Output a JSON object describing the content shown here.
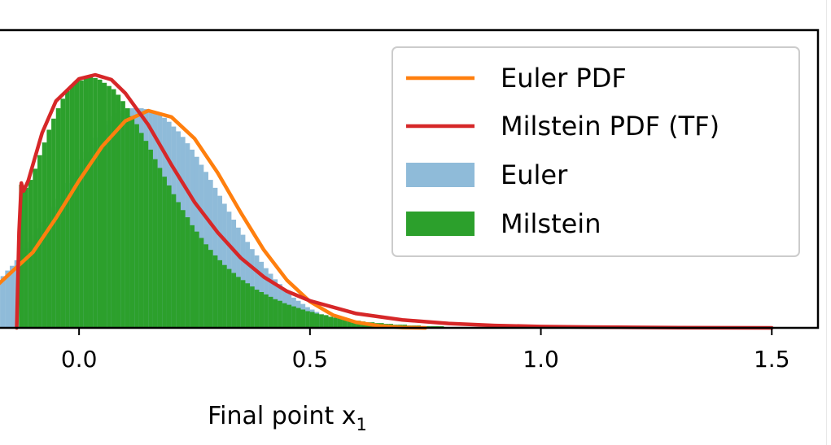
{
  "chart_data": {
    "type": "histogram",
    "xlabel": "Final point x",
    "xlabel_subscript": "1",
    "xlim": [
      -0.18,
      1.6
    ],
    "xticks": [
      0.0,
      0.5,
      1.0,
      1.5
    ],
    "xtick_labels": [
      "0.0",
      "0.5",
      "1.0",
      "1.5"
    ],
    "ylim": [
      0,
      3.18
    ],
    "grid": false,
    "legend_position": "top-right",
    "series": [
      {
        "name": "Euler PDF",
        "kind": "line",
        "color": "#ff7f0e",
        "x": [
          -0.18,
          -0.1,
          -0.05,
          0.0,
          0.05,
          0.1,
          0.15,
          0.2,
          0.25,
          0.3,
          0.35,
          0.4,
          0.45,
          0.5,
          0.55,
          0.6,
          0.65,
          0.7,
          0.75
        ],
        "y": [
          0.52,
          0.95,
          1.38,
          1.85,
          2.28,
          2.6,
          2.73,
          2.65,
          2.38,
          1.95,
          1.45,
          0.98,
          0.6,
          0.33,
          0.16,
          0.07,
          0.025,
          0.005,
          0.0
        ]
      },
      {
        "name": "Milstein PDF (TF)",
        "kind": "line",
        "color": "#d62728",
        "x": [
          -0.135,
          -0.13,
          -0.125,
          -0.12,
          -0.11,
          -0.1,
          -0.08,
          -0.05,
          0.0,
          0.035,
          0.07,
          0.1,
          0.15,
          0.2,
          0.25,
          0.3,
          0.35,
          0.4,
          0.45,
          0.5,
          0.6,
          0.7,
          0.8,
          0.9,
          1.0,
          1.1,
          1.2,
          1.3,
          1.4,
          1.5
        ],
        "y": [
          0.0,
          1.2,
          1.82,
          1.72,
          1.85,
          2.05,
          2.45,
          2.85,
          3.13,
          3.18,
          3.12,
          2.95,
          2.55,
          2.05,
          1.58,
          1.2,
          0.88,
          0.64,
          0.46,
          0.34,
          0.18,
          0.1,
          0.055,
          0.03,
          0.017,
          0.01,
          0.006,
          0.003,
          0.001,
          0.0
        ]
      },
      {
        "name": "Euler",
        "kind": "histogram",
        "color": "#1f77b4",
        "alpha": 0.5,
        "bin_start": -0.18,
        "bin_width": 0.01,
        "counts": [
          0.6,
          0.65,
          0.72,
          0.78,
          0.85,
          0.92,
          1.0,
          1.08,
          1.16,
          1.25,
          1.33,
          1.42,
          1.52,
          1.62,
          1.72,
          1.82,
          1.92,
          2.02,
          2.12,
          2.21,
          2.3,
          2.39,
          2.47,
          2.55,
          2.6,
          2.66,
          2.7,
          2.73,
          2.75,
          2.76,
          2.76,
          2.76,
          2.75,
          2.73,
          2.71,
          2.68,
          2.64,
          2.59,
          2.53,
          2.47,
          2.4,
          2.32,
          2.24,
          2.15,
          2.05,
          1.96,
          1.86,
          1.76,
          1.66,
          1.56,
          1.46,
          1.36,
          1.26,
          1.17,
          1.08,
          0.99,
          0.91,
          0.83,
          0.75,
          0.68,
          0.61,
          0.55,
          0.49,
          0.43,
          0.38,
          0.34,
          0.3,
          0.26,
          0.23,
          0.2,
          0.17,
          0.15,
          0.13,
          0.11,
          0.1,
          0.08,
          0.07,
          0.06,
          0.05,
          0.05,
          0.04,
          0.03,
          0.03,
          0.02,
          0.02,
          0.02,
          0.01,
          0.01,
          0.01,
          0.01,
          0.01,
          0.0,
          0.0,
          0.0,
          0.0
        ]
      },
      {
        "name": "Milstein",
        "kind": "histogram",
        "color": "#2ca02c",
        "alpha": 1.0,
        "bin_start": -0.13,
        "bin_width": 0.01,
        "counts": [
          1.8,
          1.76,
          1.86,
          2.0,
          2.17,
          2.33,
          2.49,
          2.63,
          2.76,
          2.88,
          2.98,
          3.05,
          3.1,
          3.11,
          3.15,
          3.16,
          3.14,
          3.12,
          3.08,
          3.04,
          3.0,
          2.93,
          2.85,
          2.76,
          2.66,
          2.56,
          2.45,
          2.35,
          2.24,
          2.12,
          2.01,
          1.9,
          1.79,
          1.68,
          1.58,
          1.48,
          1.39,
          1.29,
          1.21,
          1.13,
          1.05,
          0.98,
          0.91,
          0.85,
          0.79,
          0.74,
          0.69,
          0.64,
          0.6,
          0.56,
          0.52,
          0.48,
          0.45,
          0.42,
          0.39,
          0.36,
          0.34,
          0.31,
          0.29,
          0.27,
          0.25,
          0.23,
          0.21,
          0.2,
          0.18,
          0.17,
          0.16,
          0.14,
          0.13,
          0.12,
          0.11,
          0.1,
          0.09,
          0.09,
          0.08,
          0.07,
          0.07,
          0.06,
          0.06,
          0.05,
          0.05,
          0.04,
          0.04,
          0.04,
          0.03,
          0.03,
          0.03,
          0.02,
          0.02,
          0.02,
          0.02,
          0.02,
          0.01,
          0.01,
          0.01,
          0.01,
          0.01,
          0.01,
          0.01,
          0.01,
          0.0
        ]
      }
    ]
  }
}
